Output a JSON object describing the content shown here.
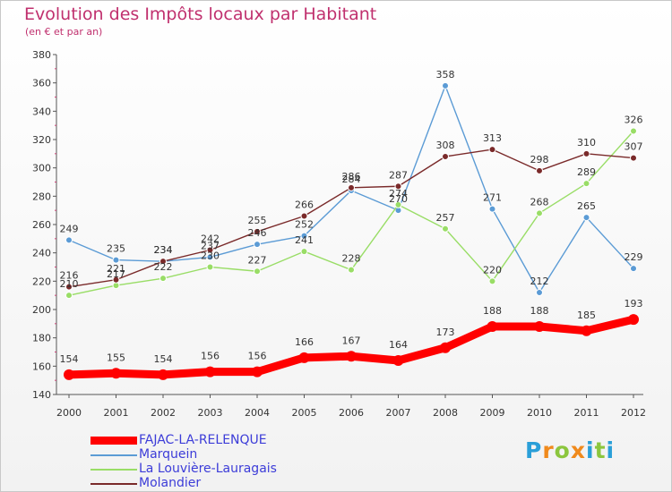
{
  "title": "Evolution des Impôts locaux par Habitant",
  "subtitle": "(en € et par an)",
  "logo": {
    "text": "Proxiti",
    "colors": [
      "#f08a1c",
      "#2a9fd8",
      "#8cc63e"
    ]
  },
  "chart_data": {
    "type": "line",
    "x": [
      "2000",
      "2001",
      "2002",
      "2003",
      "2004",
      "2005",
      "2006",
      "2007",
      "2008",
      "2009",
      "2010",
      "2011",
      "2012"
    ],
    "ylim": [
      140,
      380
    ],
    "yticks": [
      140,
      160,
      180,
      200,
      220,
      240,
      260,
      280,
      300,
      320,
      340,
      360,
      380
    ],
    "grid": false,
    "legend_position": "bottom-left",
    "series": [
      {
        "name": "FAJAC-LA-RELENQUE",
        "color": "#ff0000",
        "values": [
          154,
          155,
          154,
          156,
          156,
          166,
          167,
          164,
          173,
          188,
          188,
          185,
          193
        ]
      },
      {
        "name": "Marquein",
        "color": "#5b9bd5",
        "values": [
          249,
          235,
          234,
          237,
          246,
          252,
          284,
          270,
          358,
          271,
          212,
          265,
          229
        ]
      },
      {
        "name": "La Louvière-Lauragais",
        "color": "#99dd66",
        "values": [
          210,
          217,
          222,
          230,
          227,
          241,
          228,
          274,
          257,
          220,
          268,
          289,
          326
        ]
      },
      {
        "name": "Molandier",
        "color": "#7a2a2a",
        "values": [
          216,
          221,
          234,
          242,
          255,
          266,
          286,
          287,
          308,
          313,
          298,
          310,
          307
        ]
      }
    ],
    "data_labels": [
      [
        "154",
        "155",
        "154",
        "156",
        "156",
        "166",
        "167",
        "164",
        "173",
        "188",
        "188",
        "185",
        "193"
      ],
      [
        "249",
        "235",
        "234",
        "237",
        "246",
        "252",
        "284",
        "270",
        "358",
        "271",
        "212",
        "265",
        "229"
      ],
      [
        "210",
        "217",
        "222",
        "230",
        "227",
        "241",
        "228",
        "274",
        "257",
        "220",
        "268",
        "289",
        "326"
      ],
      [
        "216",
        "221",
        "234",
        "242",
        "255",
        "266",
        "286",
        "287",
        "308",
        "313",
        "298",
        "310",
        "307"
      ]
    ]
  }
}
